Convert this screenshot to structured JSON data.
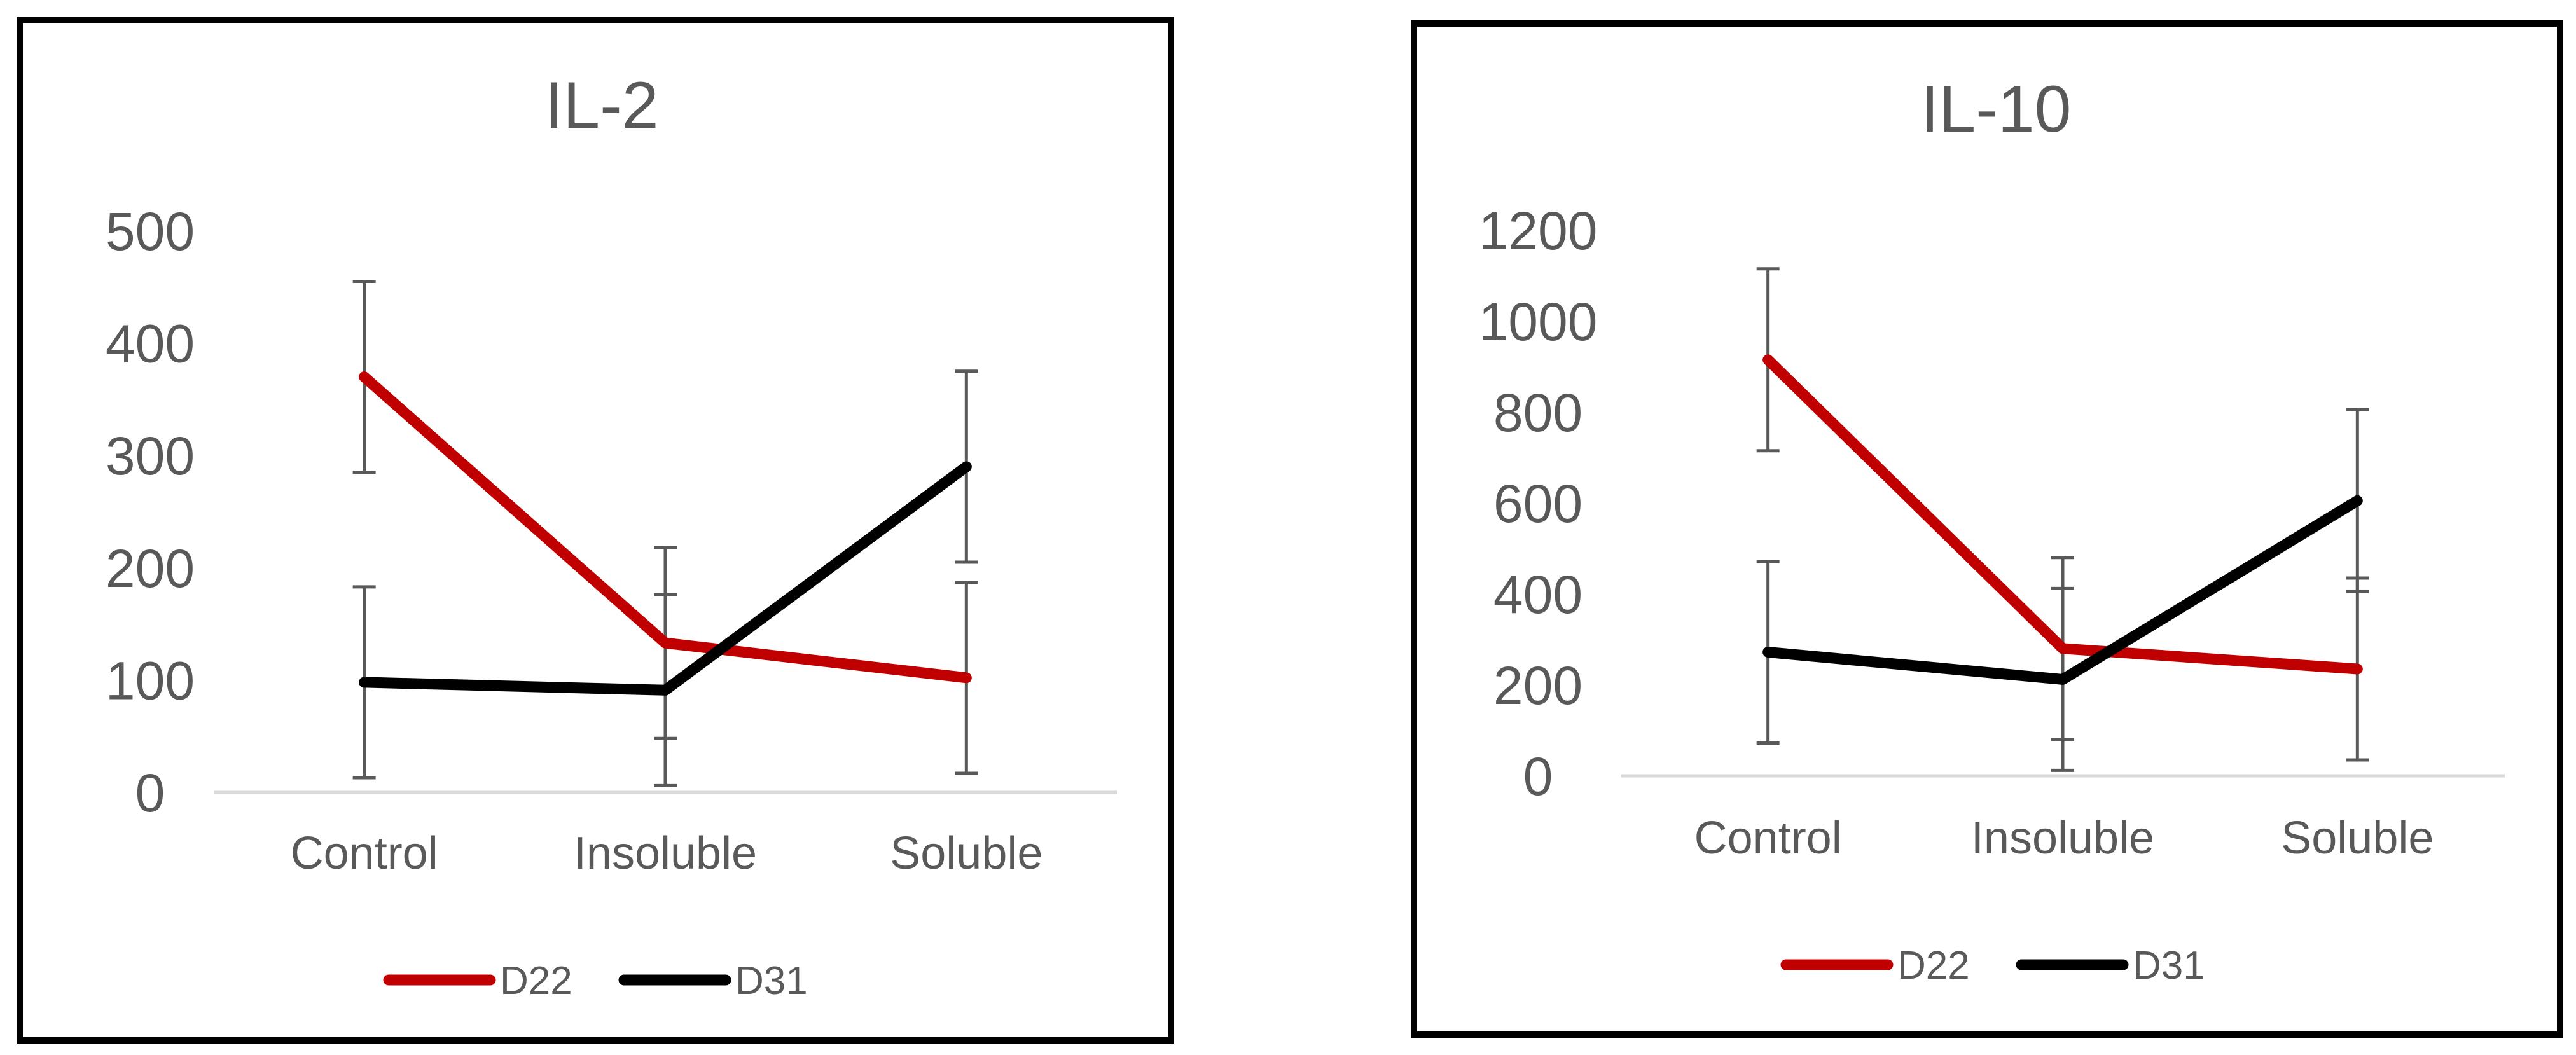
{
  "chart_data": [
    {
      "type": "line",
      "title": "IL-2",
      "xlabel": "",
      "ylabel": "",
      "categories": [
        "Control",
        "Insoluble",
        "Soluble"
      ],
      "ylim": [
        0,
        500
      ],
      "yticks": [
        0,
        100,
        200,
        300,
        400,
        500
      ],
      "grid": false,
      "legend": "bottom",
      "series": [
        {
          "name": "D22",
          "color": "#C00000",
          "values": [
            370,
            133,
            102
          ],
          "error": [
            85,
            85,
            85
          ]
        },
        {
          "name": "D31",
          "color": "#000000",
          "values": [
            98,
            91,
            290
          ],
          "error": [
            85,
            85,
            85
          ]
        }
      ]
    },
    {
      "type": "line",
      "title": "IL-10",
      "xlabel": "",
      "ylabel": "",
      "categories": [
        "Control",
        "Insoluble",
        "Soluble"
      ],
      "ylim": [
        0,
        1200
      ],
      "yticks": [
        0,
        200,
        400,
        600,
        800,
        1000,
        1200
      ],
      "grid": false,
      "legend": "bottom",
      "series": [
        {
          "name": "D22",
          "color": "#C00000",
          "values": [
            915,
            280,
            235
          ],
          "error": [
            200,
            200,
            200
          ]
        },
        {
          "name": "D31",
          "color": "#000000",
          "values": [
            272,
            212,
            605
          ],
          "error": [
            200,
            200,
            200
          ]
        }
      ]
    }
  ]
}
